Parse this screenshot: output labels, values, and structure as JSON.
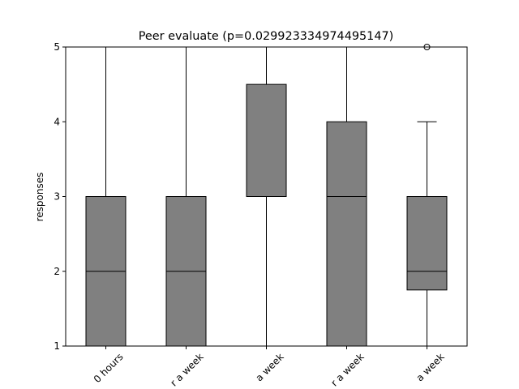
{
  "chart_data": {
    "type": "box",
    "title": "Peer evaluate (p=0.029923334974495147)",
    "ylabel": "responses",
    "categories": [
      "0 hours",
      "r a week",
      "a week",
      "r a week",
      "a week"
    ],
    "boxes": [
      {
        "min": 1,
        "q1": 1,
        "median": 2,
        "q3": 3,
        "max": 5,
        "fliers": []
      },
      {
        "min": 1,
        "q1": 1,
        "median": 2,
        "q3": 3,
        "max": 5,
        "fliers": []
      },
      {
        "min": 1,
        "q1": 3,
        "median": 3,
        "q3": 4.5,
        "max": 5,
        "fliers": []
      },
      {
        "min": 1,
        "q1": 1,
        "median": 3,
        "q3": 4,
        "max": 5,
        "fliers": []
      },
      {
        "min": 1,
        "q1": 1.75,
        "median": 2,
        "q3": 3,
        "max": 4,
        "fliers": [
          5
        ]
      }
    ],
    "color": "#808080",
    "ylim": [
      1,
      5
    ],
    "yticks": [
      1,
      2,
      3,
      4,
      5
    ]
  }
}
